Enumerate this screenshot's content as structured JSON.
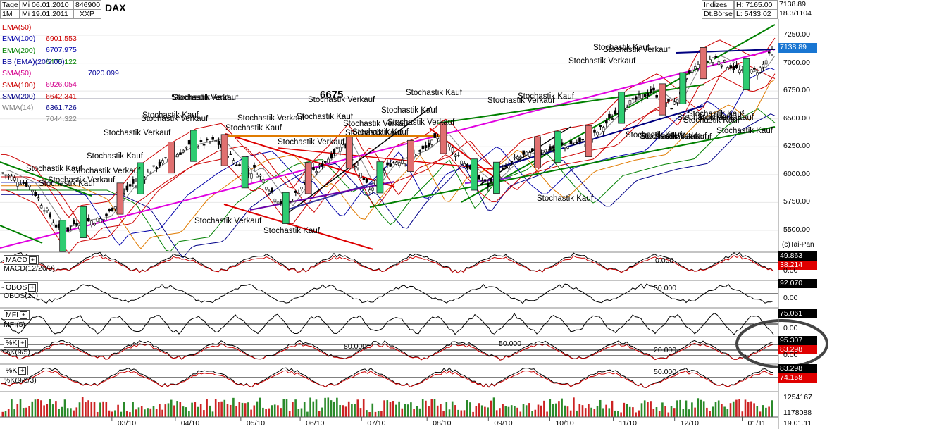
{
  "header": {
    "period_tage": "Tage",
    "period_1m": "1M",
    "date_from": "Mi 06.01.2010",
    "date_to": "Mi 19.01.2011",
    "code": "846900",
    "exchange_code": "XXP",
    "symbol": "DAX",
    "category": "Indizes",
    "exchange": "Dt.Börse",
    "high": "H: 7165.00",
    "low": "L: 5433.02",
    "last": "7138.89",
    "date_short": "18.3/1104"
  },
  "indicators": [
    {
      "label": "EMA(50)",
      "value": "6901.553",
      "color": "#cc0000"
    },
    {
      "label": "EMA(100)",
      "value": "6707.975",
      "color": "#0000aa"
    },
    {
      "label": "EMA(200)",
      "value": "6475.122",
      "color": "#008000"
    },
    {
      "label": "BB (EMA)(20/2.00)",
      "value": "7020.099",
      "color": "#000099"
    },
    {
      "label": "SMA(50)",
      "value": "6926.054",
      "color": "#d4008c"
    },
    {
      "label": "SMA(100)",
      "value": "6642.341",
      "color": "#cc0000"
    },
    {
      "label": "SMA(200)",
      "value": "6361.726",
      "color": "#000088"
    },
    {
      "label": "WMA(14)",
      "value": "7044.322",
      "color": "#7f7f7f"
    }
  ],
  "annotations": {
    "level_6675": "6675",
    "copyright": "(c)Tai-Pan",
    "labels": [
      {
        "text": "Stochastik Kauf"
      },
      {
        "text": "Stochastik Verkauf"
      },
      {
        "text": "Stochastik Kauf"
      },
      {
        "text": "Stochastik Verkauf"
      },
      {
        "text": "Stochastik Kauf"
      },
      {
        "text": "Stochastik Verkauf"
      },
      {
        "text": "Stochastik Kauf"
      },
      {
        "text": "Stochastik Verkauf"
      },
      {
        "text": "Stochastik Kauf"
      },
      {
        "text": "Stochastik Verkauf"
      },
      {
        "text": "Stochastik Verkauf"
      },
      {
        "text": "Stochastik Kauf"
      },
      {
        "text": "Stochastik Verkauf"
      },
      {
        "text": "Stochastik Kauf"
      },
      {
        "text": "Stochastik Verkauf"
      },
      {
        "text": "Stochastik Kauf"
      },
      {
        "text": "Stochastik Verkauf"
      },
      {
        "text": "Stochastik Kauf"
      },
      {
        "text": "Stochastik Kauf"
      },
      {
        "text": "Stochastik Verkauf"
      },
      {
        "text": "Stochastik Kauf"
      },
      {
        "text": "Stochastik Verkauf"
      },
      {
        "text": "Stochastik Kauf"
      },
      {
        "text": "Stochastik Verkauf"
      },
      {
        "text": "Stochastik Kauf"
      },
      {
        "text": "Stochastik Verkauf"
      },
      {
        "text": "Stochastik Kauf"
      },
      {
        "text": "Stochastik Verkauf"
      },
      {
        "text": "Stochastik Kauf"
      },
      {
        "text": "Stochastik Kauf"
      },
      {
        "text": "Stochastik Kauf"
      },
      {
        "text": "Stochastik Verkauf"
      },
      {
        "text": "Stochastik Kauf"
      },
      {
        "text": "Stochastik Verkauf"
      },
      {
        "text": "Stochastik Kauf"
      },
      {
        "text": "Stochastik Kauf"
      },
      {
        "text": "Stochastik Kauf"
      },
      {
        "text": "Stochastik Kauf"
      }
    ]
  },
  "panels": [
    {
      "id": "macd",
      "button": "MACD",
      "name": "MACD(12/26/9)",
      "level": "0.000",
      "badge1": "49.863",
      "badge2": "38.214",
      "tick": "0.00",
      "color": "#000000"
    },
    {
      "id": "obos",
      "button": "OBOS",
      "name": "OBOS(20)",
      "level": "50.000",
      "badge1": "92.070",
      "badge2": "",
      "tick": "0.00",
      "color": "#000000"
    },
    {
      "id": "mfi",
      "button": "MFI",
      "name": "MFI(5)",
      "level": "",
      "badge1": "75.061",
      "badge2": "",
      "tick": "0.00",
      "color": "#000000"
    },
    {
      "id": "k1",
      "button": "%K",
      "name": "%K(9/5)",
      "levels": [
        "80.000",
        "50.000",
        "20.000"
      ],
      "badge1": "95.307",
      "badge2": "83.298",
      "tick": "0.00",
      "color": "#000000"
    },
    {
      "id": "k2",
      "button": "%K",
      "name": "%K(9/5/3)",
      "level": "50.000",
      "badge1": "83.298",
      "badge2": "74.158",
      "tick": "",
      "color": "#000000"
    }
  ],
  "volume_ticks": [
    "1254167",
    "1178088"
  ],
  "last_date": "19.01.11",
  "chart_data": {
    "type": "candlestick",
    "title": "DAX",
    "x_tick_labels": [
      "03/10",
      "04/10",
      "05/10",
      "06/10",
      "07/10",
      "08/10",
      "09/10",
      "10/10",
      "11/10",
      "12/10",
      "01/11"
    ],
    "y_tick_labels": [
      "7250.00",
      "7000.00",
      "6750.00",
      "6500.00",
      "6250.00",
      "6000.00",
      "5750.00",
      "5500.00"
    ],
    "ylim": [
      5330,
      7420
    ],
    "path": [
      [
        "2010-01-06",
        6020
      ],
      [
        "2010-01-20",
        5900
      ],
      [
        "2010-02-05",
        5450
      ],
      [
        "2010-02-10",
        5560
      ],
      [
        "2010-02-25",
        5600
      ],
      [
        "2010-03-10",
        5900
      ],
      [
        "2010-03-25",
        6100
      ],
      [
        "2010-04-08",
        6250
      ],
      [
        "2010-04-21",
        6300
      ],
      [
        "2010-05-06",
        6000
      ],
      [
        "2010-05-10",
        6050
      ],
      [
        "2010-05-20",
        5800
      ],
      [
        "2010-05-25",
        5700
      ],
      [
        "2010-06-04",
        5950
      ],
      [
        "2010-06-15",
        6150
      ],
      [
        "2010-06-22",
        6300
      ],
      [
        "2010-07-05",
        5850
      ],
      [
        "2010-07-15",
        6100
      ],
      [
        "2010-07-30",
        6200
      ],
      [
        "2010-08-09",
        6350
      ],
      [
        "2010-08-25",
        6000
      ],
      [
        "2010-09-01",
        5900
      ],
      [
        "2010-09-15",
        6150
      ],
      [
        "2010-10-05",
        6250
      ],
      [
        "2010-10-20",
        6300
      ],
      [
        "2010-11-05",
        6600
      ],
      [
        "2010-11-20",
        6750
      ],
      [
        "2010-11-30",
        6600
      ],
      [
        "2010-12-10",
        6950
      ],
      [
        "2010-12-20",
        7050
      ],
      [
        "2011-01-05",
        6900
      ],
      [
        "2011-01-12",
        6950
      ],
      [
        "2011-01-19",
        7138.89
      ]
    ],
    "colored_bars": [
      {
        "date": "2010-02-05",
        "color": "#2ecc71"
      },
      {
        "date": "2010-02-15",
        "color": "#2ecc71"
      },
      {
        "date": "2010-03-05",
        "color": "#e07070"
      },
      {
        "date": "2010-03-15",
        "color": "#2ecc71"
      },
      {
        "date": "2010-03-30",
        "color": "#e07070"
      },
      {
        "date": "2010-04-10",
        "color": "#2ecc71"
      },
      {
        "date": "2010-04-25",
        "color": "#e07070"
      },
      {
        "date": "2010-05-05",
        "color": "#2ecc71"
      },
      {
        "date": "2010-05-25",
        "color": "#2ecc71"
      },
      {
        "date": "2010-06-05",
        "color": "#e07070"
      },
      {
        "date": "2010-06-25",
        "color": "#e07070"
      },
      {
        "date": "2010-07-10",
        "color": "#2ecc71"
      },
      {
        "date": "2010-07-25",
        "color": "#e07070"
      },
      {
        "date": "2010-08-10",
        "color": "#e07070"
      },
      {
        "date": "2010-08-25",
        "color": "#2ecc71"
      },
      {
        "date": "2010-09-05",
        "color": "#2ecc71"
      },
      {
        "date": "2010-09-25",
        "color": "#e07070"
      },
      {
        "date": "2010-10-05",
        "color": "#2ecc71"
      },
      {
        "date": "2010-10-20",
        "color": "#e07070"
      },
      {
        "date": "2010-11-05",
        "color": "#2ecc71"
      },
      {
        "date": "2010-11-25",
        "color": "#e07070"
      },
      {
        "date": "2010-12-05",
        "color": "#2ecc71"
      },
      {
        "date": "2010-12-15",
        "color": "#e07070"
      },
      {
        "date": "2011-01-05",
        "color": "#2ecc71"
      }
    ]
  }
}
